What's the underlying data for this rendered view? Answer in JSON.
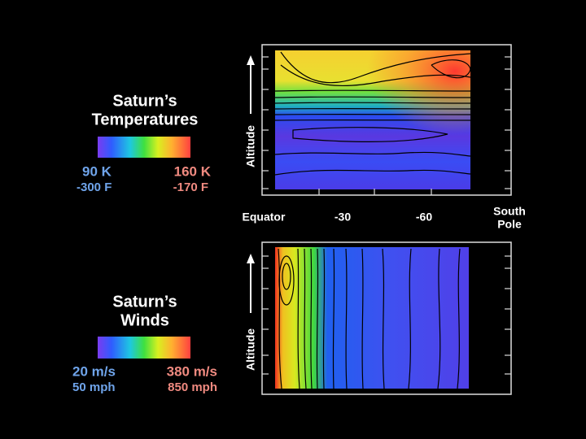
{
  "temperature_legend": {
    "title": [
      "Saturn’s",
      "Temperatures"
    ],
    "min": {
      "primary": "90 K",
      "secondary": "-300 F"
    },
    "max": {
      "primary": "160 K",
      "secondary": "-170 F"
    }
  },
  "wind_legend": {
    "title": [
      "Saturn’s",
      "Winds"
    ],
    "min": {
      "primary": "20 m/s",
      "secondary": "50 mph"
    },
    "max": {
      "primary": "380 m/s",
      "secondary": "850 mph"
    }
  },
  "temperature_panel": {
    "y_label": "Altitude"
  },
  "wind_panel": {
    "y_label": "Altitude"
  },
  "x_axis": {
    "labels": [
      "Equator",
      "-30",
      "-60"
    ],
    "end_label": [
      "South",
      "Pole"
    ]
  }
}
